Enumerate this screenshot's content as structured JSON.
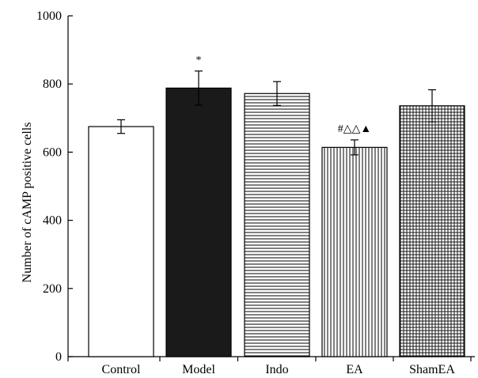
{
  "chart_data": {
    "type": "bar",
    "title": "",
    "xlabel": "",
    "ylabel": "Number of cAMP positive cells",
    "ylim": [
      0,
      1000
    ],
    "yticks": [
      0,
      200,
      400,
      600,
      800,
      1000
    ],
    "grid": false,
    "legend": "none",
    "categories": [
      "Control",
      "Model",
      "Indo",
      "EA",
      "ShamEA"
    ],
    "values": [
      675,
      788,
      772,
      614,
      736
    ],
    "errors": [
      20,
      50,
      35,
      22,
      47
    ],
    "annotations": [
      "",
      "*",
      "",
      "#△△▲",
      ""
    ],
    "patterns": [
      "white",
      "black",
      "horizontal-lines",
      "vertical-lines",
      "grid"
    ]
  }
}
